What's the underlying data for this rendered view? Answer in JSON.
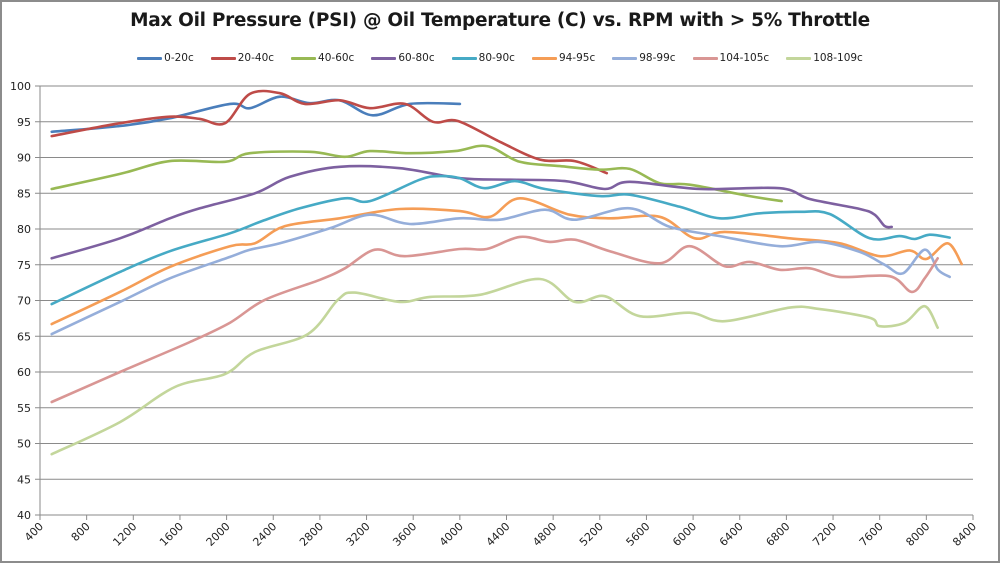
{
  "chart_data": {
    "type": "line",
    "title": "Max Oil Pressure (PSI) @ Oil Temperature (C) vs. RPM with > 5% Throttle",
    "xlabel": "",
    "ylabel": "",
    "xlim": [
      400,
      8400
    ],
    "ylim": [
      40,
      100
    ],
    "x_ticks": [
      "400",
      "800",
      "1200",
      "1600",
      "2000",
      "2400",
      "2800",
      "3200",
      "3600",
      "4000",
      "4400",
      "4800",
      "5200",
      "5600",
      "6000",
      "6400",
      "6800",
      "7200",
      "7600",
      "8000",
      "8400"
    ],
    "y_ticks": [
      "40",
      "45",
      "50",
      "55",
      "60",
      "65",
      "70",
      "75",
      "80",
      "85",
      "90",
      "95",
      "100"
    ],
    "grid": "horizontal",
    "legend_position": "top",
    "series": [
      {
        "name": "0-20c",
        "color": "#4A7EBB",
        "points": [
          [
            500,
            93.6
          ],
          [
            1086,
            94.4
          ],
          [
            1514,
            95.5
          ],
          [
            2029,
            97.5
          ],
          [
            2200,
            96.9
          ],
          [
            2457,
            98.5
          ],
          [
            2714,
            97.6
          ],
          [
            2971,
            98.0
          ],
          [
            3254,
            95.9
          ],
          [
            3571,
            97.5
          ],
          [
            4000,
            97.5
          ]
        ]
      },
      {
        "name": "20-40c",
        "color": "#BE4B48",
        "points": [
          [
            500,
            93.0
          ],
          [
            1086,
            94.8
          ],
          [
            1514,
            95.7
          ],
          [
            1771,
            95.4
          ],
          [
            1986,
            94.8
          ],
          [
            2200,
            98.9
          ],
          [
            2457,
            99.0
          ],
          [
            2671,
            97.5
          ],
          [
            2971,
            98.0
          ],
          [
            3229,
            96.9
          ],
          [
            3529,
            97.5
          ],
          [
            3769,
            95.0
          ],
          [
            3983,
            95.1
          ],
          [
            4343,
            92.2
          ],
          [
            4686,
            89.7
          ],
          [
            4986,
            89.5
          ],
          [
            5260,
            87.8
          ]
        ]
      },
      {
        "name": "40-60c",
        "color": "#98B954",
        "points": [
          [
            500,
            85.6
          ],
          [
            1086,
            87.7
          ],
          [
            1514,
            89.5
          ],
          [
            1986,
            89.4
          ],
          [
            2200,
            90.6
          ],
          [
            2714,
            90.8
          ],
          [
            3014,
            90.1
          ],
          [
            3229,
            90.9
          ],
          [
            3571,
            90.6
          ],
          [
            3957,
            90.9
          ],
          [
            4231,
            91.6
          ],
          [
            4514,
            89.4
          ],
          [
            4857,
            88.8
          ],
          [
            5200,
            88.3
          ],
          [
            5457,
            88.4
          ],
          [
            5714,
            86.4
          ],
          [
            5971,
            86.2
          ],
          [
            6486,
            84.6
          ],
          [
            6760,
            83.9
          ]
        ]
      },
      {
        "name": "60-80c",
        "color": "#7D60A0",
        "points": [
          [
            500,
            75.9
          ],
          [
            1086,
            78.7
          ],
          [
            1514,
            81.5
          ],
          [
            1771,
            82.9
          ],
          [
            2243,
            85.0
          ],
          [
            2543,
            87.3
          ],
          [
            2971,
            88.7
          ],
          [
            3486,
            88.5
          ],
          [
            4000,
            87.1
          ],
          [
            4429,
            86.9
          ],
          [
            4900,
            86.7
          ],
          [
            5243,
            85.6
          ],
          [
            5457,
            86.6
          ],
          [
            6057,
            85.6
          ],
          [
            6743,
            85.7
          ],
          [
            7000,
            84.2
          ],
          [
            7429,
            82.8
          ],
          [
            7557,
            82.0
          ],
          [
            7643,
            80.4
          ],
          [
            7703,
            80.3
          ]
        ]
      },
      {
        "name": "80-90c",
        "color": "#46AAC5",
        "points": [
          [
            500,
            69.5
          ],
          [
            1086,
            74.0
          ],
          [
            1514,
            76.9
          ],
          [
            2029,
            79.4
          ],
          [
            2303,
            81.1
          ],
          [
            2629,
            82.9
          ],
          [
            3014,
            84.3
          ],
          [
            3229,
            83.9
          ],
          [
            3657,
            86.9
          ],
          [
            3829,
            87.4
          ],
          [
            4000,
            87.1
          ],
          [
            4214,
            85.7
          ],
          [
            4471,
            86.7
          ],
          [
            4729,
            85.6
          ],
          [
            5200,
            84.6
          ],
          [
            5457,
            84.8
          ],
          [
            5886,
            83.1
          ],
          [
            6229,
            81.5
          ],
          [
            6571,
            82.2
          ],
          [
            6914,
            82.4
          ],
          [
            7171,
            82.1
          ],
          [
            7514,
            78.7
          ],
          [
            7771,
            79.0
          ],
          [
            7900,
            78.6
          ],
          [
            8029,
            79.2
          ],
          [
            8200,
            78.8
          ]
        ]
      },
      {
        "name": "94-95c",
        "color": "#F59D56",
        "points": [
          [
            500,
            66.7
          ],
          [
            1086,
            71.2
          ],
          [
            1514,
            74.7
          ],
          [
            2029,
            77.6
          ],
          [
            2243,
            78.0
          ],
          [
            2500,
            80.4
          ],
          [
            2971,
            81.5
          ],
          [
            3486,
            82.8
          ],
          [
            4000,
            82.5
          ],
          [
            4257,
            81.7
          ],
          [
            4514,
            84.3
          ],
          [
            4943,
            82.0
          ],
          [
            5286,
            81.5
          ],
          [
            5714,
            81.7
          ],
          [
            6014,
            78.7
          ],
          [
            6271,
            79.6
          ],
          [
            6829,
            78.7
          ],
          [
            7257,
            78.0
          ],
          [
            7600,
            76.2
          ],
          [
            7857,
            77.0
          ],
          [
            8000,
            75.8
          ],
          [
            8183,
            78.0
          ],
          [
            8303,
            75.1
          ]
        ]
      },
      {
        "name": "98-99c",
        "color": "#95AEDA",
        "points": [
          [
            500,
            65.3
          ],
          [
            1086,
            69.8
          ],
          [
            1514,
            73.1
          ],
          [
            2029,
            76.1
          ],
          [
            2200,
            77.1
          ],
          [
            2457,
            78.0
          ],
          [
            2886,
            80.1
          ],
          [
            3229,
            82.0
          ],
          [
            3571,
            80.7
          ],
          [
            4000,
            81.5
          ],
          [
            4343,
            81.3
          ],
          [
            4729,
            82.7
          ],
          [
            4986,
            81.3
          ],
          [
            5457,
            82.9
          ],
          [
            5800,
            80.3
          ],
          [
            6229,
            79.0
          ],
          [
            6743,
            77.6
          ],
          [
            7086,
            78.2
          ],
          [
            7429,
            76.8
          ],
          [
            7643,
            75.0
          ],
          [
            7800,
            73.8
          ],
          [
            7986,
            77.1
          ],
          [
            8100,
            74.3
          ],
          [
            8200,
            73.3
          ]
        ]
      },
      {
        "name": "104-105c",
        "color": "#D99694",
        "points": [
          [
            500,
            55.8
          ],
          [
            1086,
            60.0
          ],
          [
            1686,
            64.2
          ],
          [
            2029,
            66.9
          ],
          [
            2329,
            70.1
          ],
          [
            2800,
            72.9
          ],
          [
            3014,
            74.5
          ],
          [
            3271,
            77.1
          ],
          [
            3529,
            76.2
          ],
          [
            4000,
            77.2
          ],
          [
            4231,
            77.2
          ],
          [
            4514,
            78.9
          ],
          [
            4771,
            78.2
          ],
          [
            4986,
            78.5
          ],
          [
            5286,
            76.9
          ],
          [
            5714,
            75.2
          ],
          [
            5971,
            77.6
          ],
          [
            6271,
            74.8
          ],
          [
            6486,
            75.4
          ],
          [
            6743,
            74.3
          ],
          [
            7000,
            74.5
          ],
          [
            7257,
            73.3
          ],
          [
            7686,
            73.4
          ],
          [
            7874,
            71.2
          ],
          [
            7986,
            73.1
          ],
          [
            8097,
            75.9
          ]
        ]
      },
      {
        "name": "108-109c",
        "color": "#C3D69B",
        "points": [
          [
            500,
            48.5
          ],
          [
            1086,
            53.0
          ],
          [
            1557,
            57.9
          ],
          [
            1986,
            59.7
          ],
          [
            2243,
            62.8
          ],
          [
            2697,
            65.3
          ],
          [
            2954,
            70.1
          ],
          [
            3100,
            71.1
          ],
          [
            3486,
            69.8
          ],
          [
            3743,
            70.5
          ],
          [
            4171,
            70.8
          ],
          [
            4686,
            73.0
          ],
          [
            4986,
            69.8
          ],
          [
            5243,
            70.6
          ],
          [
            5543,
            67.8
          ],
          [
            5971,
            68.3
          ],
          [
            6271,
            67.1
          ],
          [
            6829,
            69.0
          ],
          [
            7086,
            68.8
          ],
          [
            7514,
            67.6
          ],
          [
            7600,
            66.4
          ],
          [
            7814,
            66.9
          ],
          [
            7986,
            69.2
          ],
          [
            8097,
            66.2
          ]
        ]
      }
    ]
  }
}
